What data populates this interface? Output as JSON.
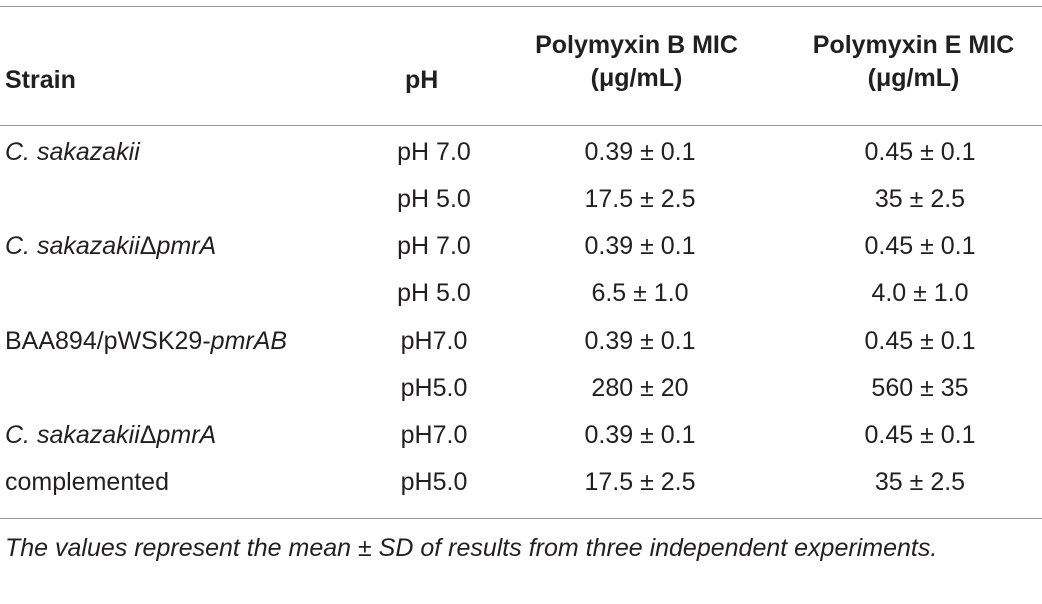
{
  "table": {
    "headers": {
      "strain": "Strain",
      "ph": "pH",
      "polymyxin_b_line1": "Polymyxin B MIC",
      "polymyxin_b_line2": "(μg/mL)",
      "polymyxin_e_line1": "Polymyxin E MIC",
      "polymyxin_e_line2": "(μg/mL)"
    },
    "rows": [
      {
        "strain_main": "C. sakazakii",
        "strain_suffix": "",
        "strain_italic_main": true,
        "ph": "pH 7.0",
        "polymyxin_b": "0.39 ± 0.1",
        "polymyxin_e": "0.45 ± 0.1"
      },
      {
        "strain_main": "",
        "strain_suffix": "",
        "strain_italic_main": false,
        "ph": "pH 5.0",
        "polymyxin_b": "17.5 ± 2.5",
        "polymyxin_e": "35 ± 2.5"
      },
      {
        "strain_main": "C. sakazakii",
        "strain_mid": "Δ",
        "strain_suffix": "pmrA",
        "ph": "pH 7.0",
        "polymyxin_b": "0.39 ± 0.1",
        "polymyxin_e": "0.45 ± 0.1"
      },
      {
        "strain_main": "",
        "strain_suffix": "",
        "ph": "pH 5.0",
        "polymyxin_b": "6.5 ± 1.0",
        "polymyxin_e": "4.0 ± 1.0"
      },
      {
        "strain_main": "BAA894/pWSK29-",
        "strain_suffix": "pmrAB",
        "ph": "pH7.0",
        "polymyxin_b": "0.39 ± 0.1",
        "polymyxin_e": "0.45 ± 0.1"
      },
      {
        "strain_main": "",
        "strain_suffix": "",
        "ph": "pH5.0",
        "polymyxin_b": "280 ± 20",
        "polymyxin_e": "560 ± 35"
      },
      {
        "strain_main": "C. sakazakii",
        "strain_mid": "Δ",
        "strain_suffix": "pmrA",
        "ph": "pH7.0",
        "polymyxin_b": "0.39 ± 0.1",
        "polymyxin_e": "0.45 ± 0.1"
      },
      {
        "strain_main": "complemented",
        "strain_suffix": "",
        "ph": "pH5.0",
        "polymyxin_b": "17.5 ± 2.5",
        "polymyxin_e": "35 ± 2.5"
      }
    ],
    "footnote": "The values represent the mean ± SD of results from three independent experiments."
  }
}
